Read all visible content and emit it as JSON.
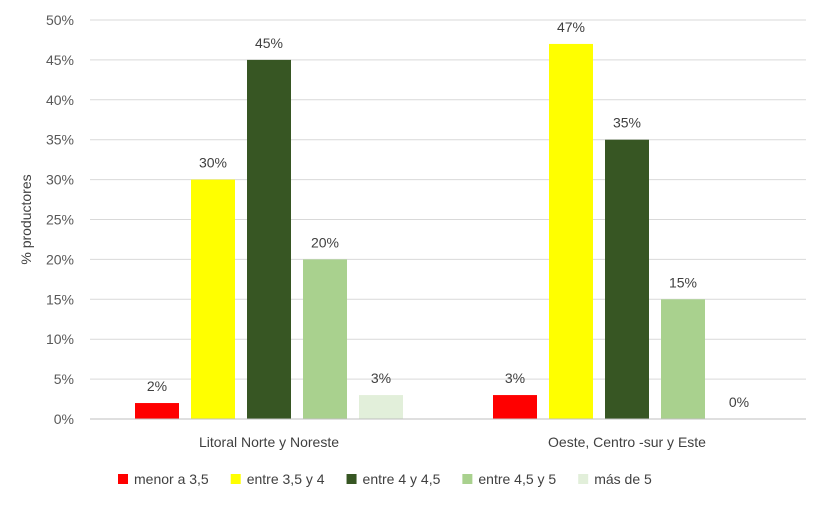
{
  "chart_data": {
    "type": "bar",
    "categories": [
      "Litoral Norte y Noreste",
      "Oeste, Centro -sur y Este"
    ],
    "series": [
      {
        "name": "menor a 3,5",
        "color": "#ff0000",
        "values": [
          2,
          3
        ],
        "labels": [
          "2%",
          "3%"
        ]
      },
      {
        "name": "entre 3,5 y 4",
        "color": "#ffff00",
        "values": [
          30,
          47
        ],
        "labels": [
          "30%",
          "47%"
        ]
      },
      {
        "name": "entre 4 y 4,5",
        "color": "#375623",
        "values": [
          45,
          35
        ],
        "labels": [
          "45%",
          "35%"
        ]
      },
      {
        "name": "entre 4,5 y 5",
        "color": "#a9d18e",
        "values": [
          20,
          15
        ],
        "labels": [
          "20%",
          "15%"
        ]
      },
      {
        "name": "más de 5",
        "color": "#e2efda",
        "values": [
          3,
          0
        ],
        "labels": [
          "3%",
          "0%"
        ]
      }
    ],
    "ylabel": "% productores",
    "ylim": [
      0,
      50
    ],
    "yticks": [
      0,
      5,
      10,
      15,
      20,
      25,
      30,
      35,
      40,
      45,
      50
    ],
    "ytick_labels": [
      "0%",
      "5%",
      "10%",
      "15%",
      "20%",
      "25%",
      "30%",
      "35%",
      "40%",
      "45%",
      "50%"
    ],
    "grid": true,
    "legend_position": "bottom"
  }
}
